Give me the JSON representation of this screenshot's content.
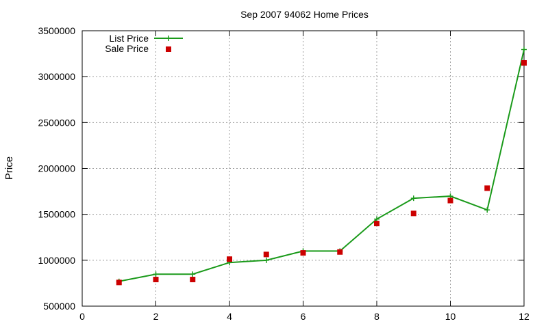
{
  "chart_data": {
    "type": "line",
    "title": "Sep 2007 94062 Home Prices",
    "xlabel": "",
    "ylabel": "Price",
    "xlim": [
      0,
      12
    ],
    "ylim": [
      500000,
      3500000
    ],
    "xticks": [
      0,
      2,
      4,
      6,
      8,
      10,
      12
    ],
    "yticks": [
      500000,
      1000000,
      1500000,
      2000000,
      2500000,
      3000000,
      3500000
    ],
    "grid": true,
    "legend_position": "top-left",
    "series": [
      {
        "name": "List Price",
        "style": "line-with-plus-markers",
        "color": "#1a9a1a",
        "x": [
          1,
          2,
          3,
          4,
          5,
          6,
          7,
          8,
          9,
          10,
          11,
          12
        ],
        "y": [
          770000,
          848000,
          848000,
          975000,
          1000000,
          1100000,
          1100000,
          1448000,
          1675000,
          1698000,
          1548000,
          3295000
        ]
      },
      {
        "name": "Sale Price",
        "style": "square-markers",
        "color": "#cc0000",
        "x": [
          1,
          2,
          3,
          4,
          5,
          6,
          7,
          8,
          9,
          10,
          11,
          12
        ],
        "y": [
          758000,
          790000,
          790000,
          1012000,
          1063000,
          1080000,
          1090000,
          1400000,
          1510000,
          1650000,
          1785000,
          3150000
        ]
      }
    ]
  }
}
